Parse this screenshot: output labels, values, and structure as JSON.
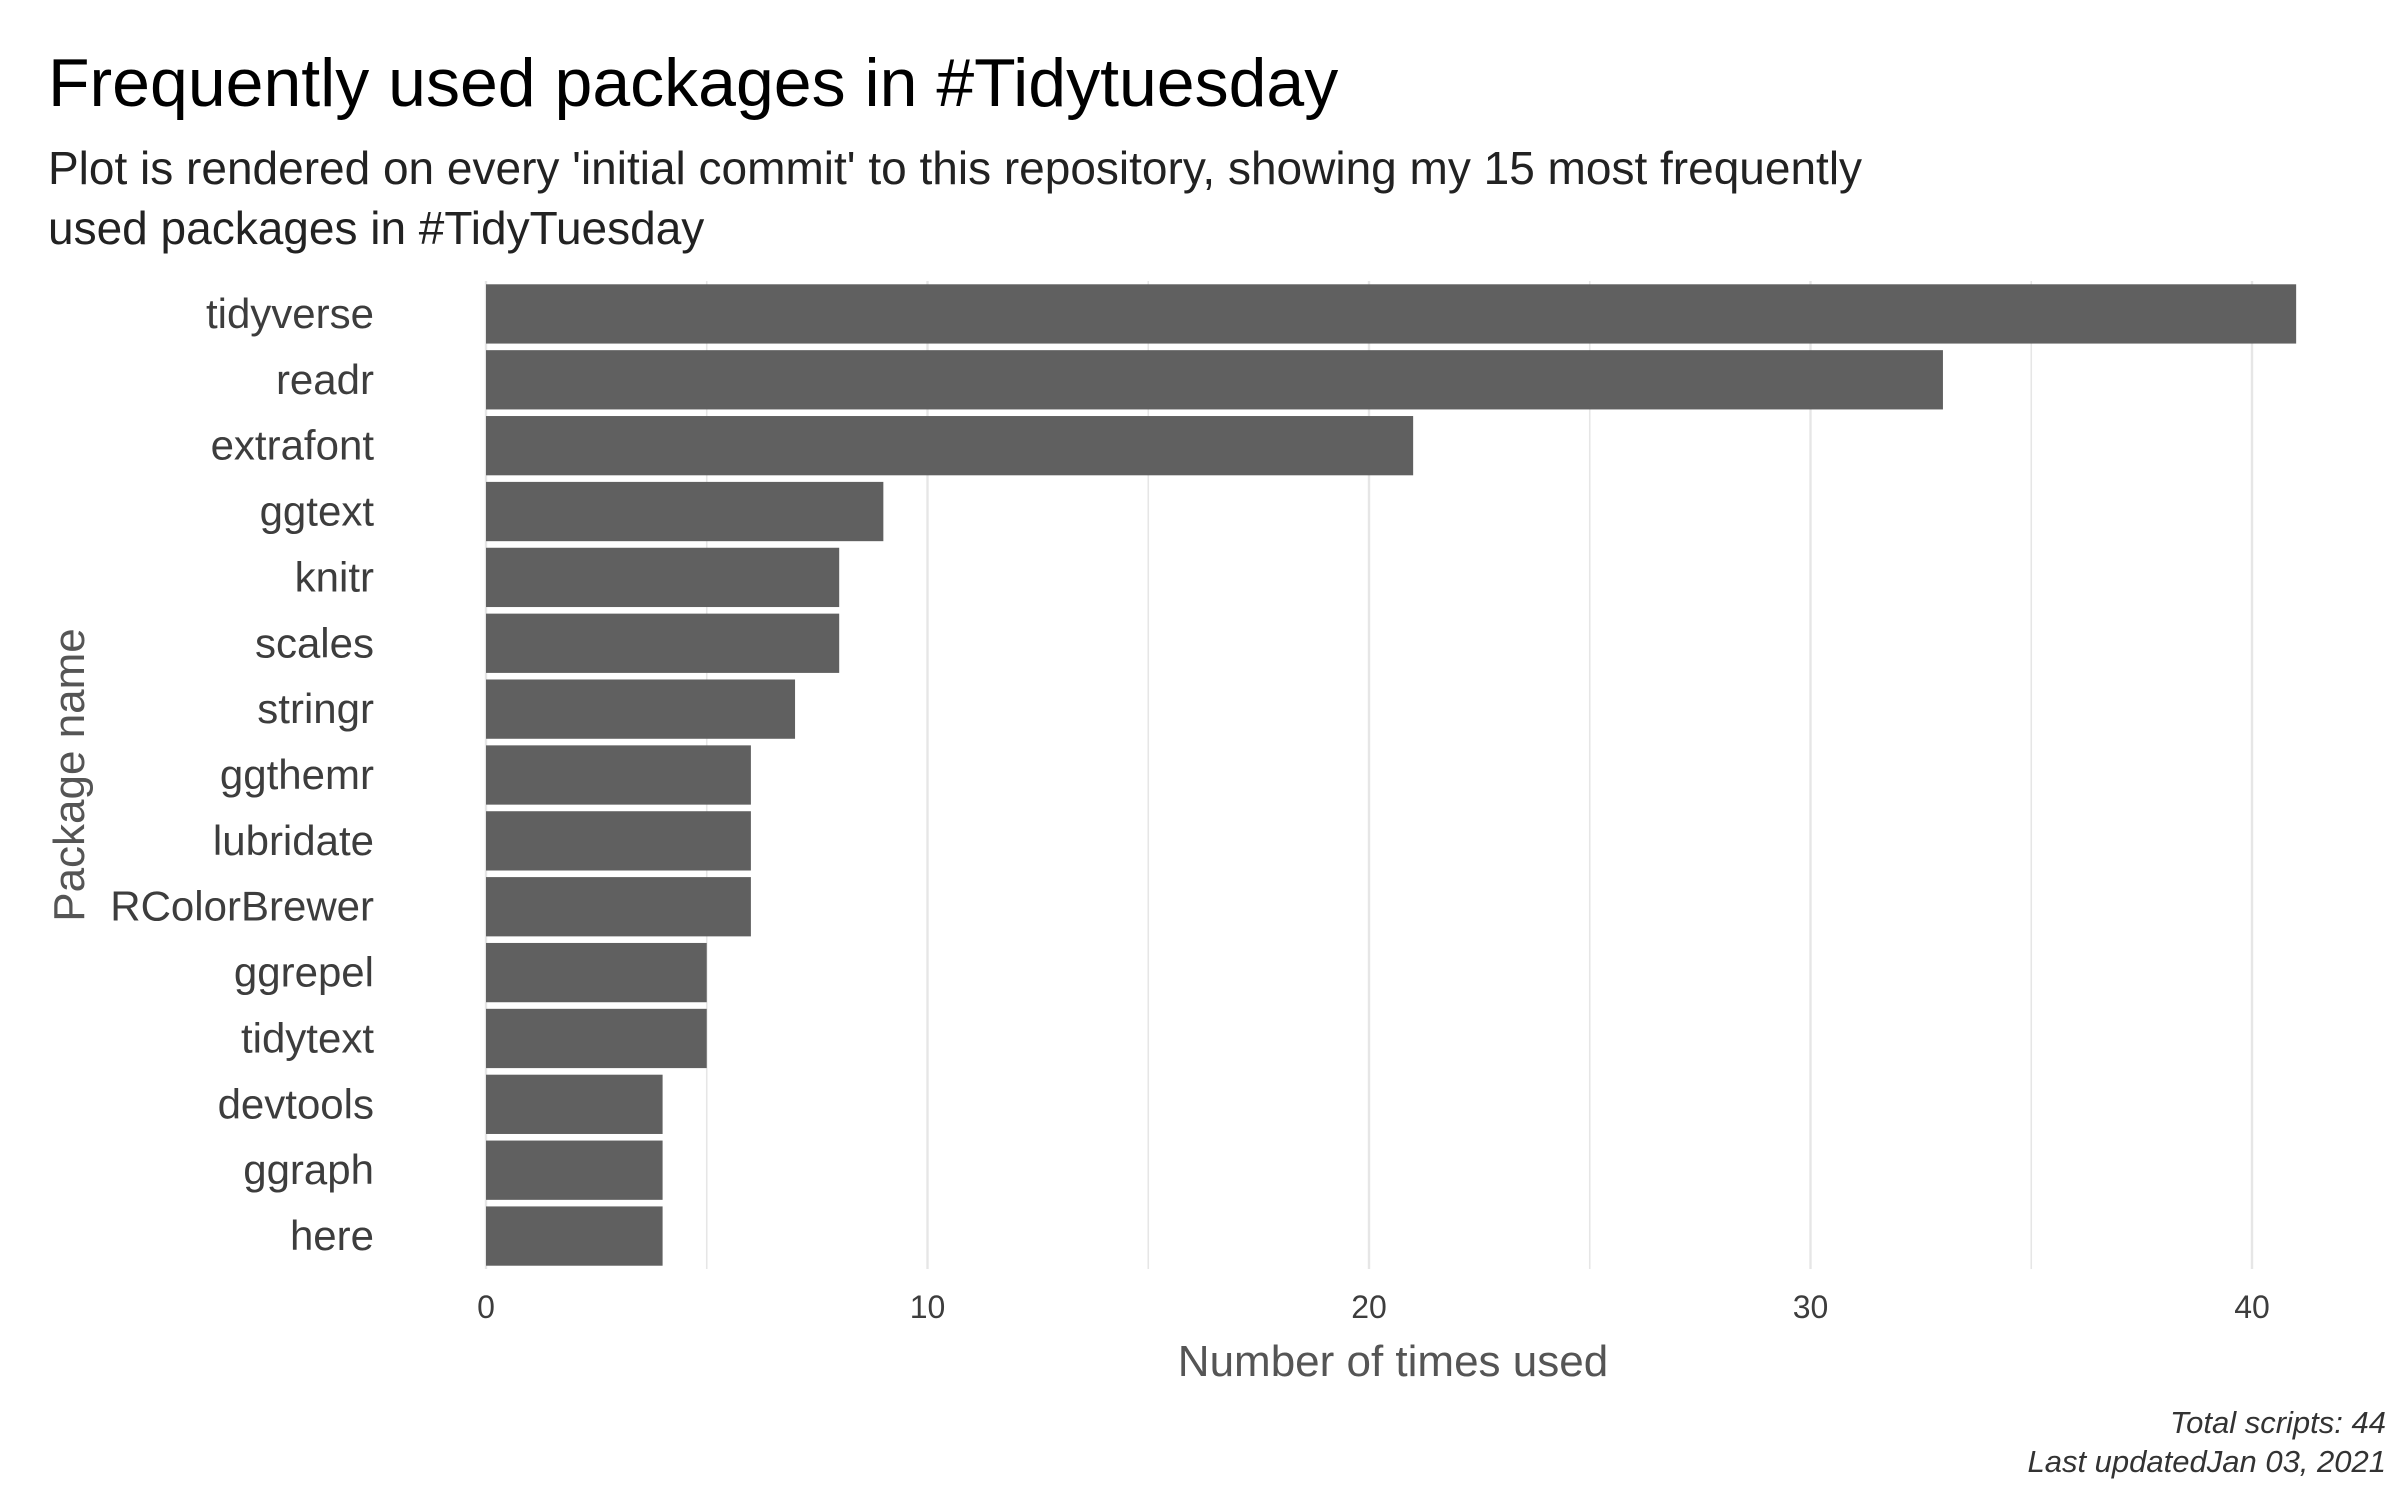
{
  "chart_data": {
    "type": "bar",
    "orientation": "horizontal",
    "title": "Frequently used packages in #Tidytuesday",
    "subtitle_lines": [
      "Plot is rendered on every 'initial commit' to this repository, showing my 15 most frequently",
      "used packages in #TidyTuesday"
    ],
    "xlabel": "Number of times used",
    "ylabel": "Package name",
    "categories": [
      "tidyverse",
      "readr",
      "extrafont",
      "ggtext",
      "knitr",
      "scales",
      "stringr",
      "ggthemr",
      "lubridate",
      "RColorBrewer",
      "ggrepel",
      "tidytext",
      "devtools",
      "ggraph",
      "here"
    ],
    "values": [
      41,
      33,
      21,
      9,
      8,
      8,
      7,
      6,
      6,
      6,
      5,
      5,
      4,
      4,
      4
    ],
    "xlim": [
      0,
      41
    ],
    "xticks": [
      0,
      10,
      20,
      30,
      40
    ],
    "grid": true,
    "bar_color": "#606060",
    "grid_color": "#e6e6e6",
    "caption_lines": [
      "Total scripts: 44",
      "Last updatedJan 03, 2021"
    ]
  }
}
